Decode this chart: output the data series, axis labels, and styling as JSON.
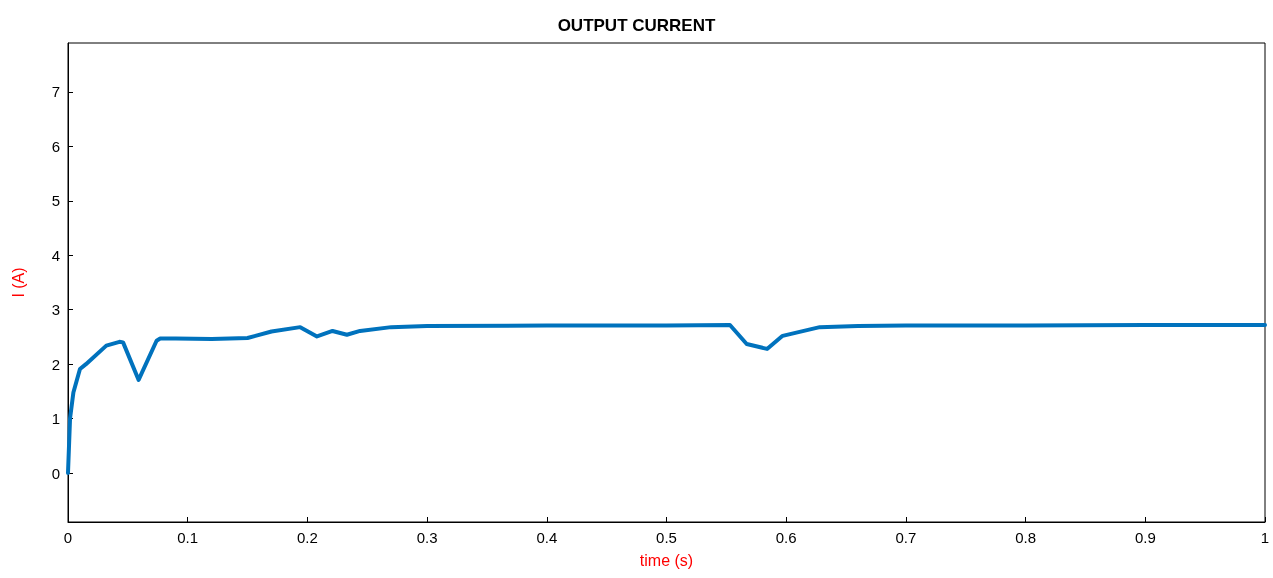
{
  "chart_data": {
    "type": "line",
    "title": "OUTPUT CURRENT",
    "xlabel": "time (s)",
    "ylabel": "I (A)",
    "x": [
      0,
      0.0017,
      0.0045,
      0.01,
      0.015,
      0.032,
      0.043,
      0.046,
      0.059,
      0.074,
      0.077,
      0.09,
      0.12,
      0.15,
      0.17,
      0.194,
      0.208,
      0.221,
      0.233,
      0.244,
      0.27,
      0.3,
      0.4,
      0.5,
      0.553,
      0.567,
      0.584,
      0.597,
      0.628,
      0.66,
      0.7,
      0.8,
      0.9,
      1
    ],
    "series": [
      {
        "color": "#0072bd",
        "values": [
          0,
          1.0,
          1.48,
          1.91,
          2.0,
          2.34,
          2.41,
          2.4,
          1.71,
          2.43,
          2.47,
          2.47,
          2.46,
          2.48,
          2.6,
          2.68,
          2.51,
          2.61,
          2.54,
          2.61,
          2.68,
          2.7,
          2.71,
          2.71,
          2.72,
          2.37,
          2.28,
          2.52,
          2.68,
          2.7,
          2.71,
          2.71,
          2.72,
          2.72
        ]
      }
    ],
    "xlim": [
      0,
      1
    ],
    "xticks": [
      0,
      0.1,
      0.2,
      0.3,
      0.4,
      0.5,
      0.6,
      0.7,
      0.8,
      0.9,
      1
    ],
    "ylim": [
      -0.9,
      7.9
    ],
    "yticks": [
      0,
      1,
      2,
      3,
      4,
      5,
      6,
      7
    ],
    "grid": false,
    "marker": "none",
    "line_style": "solid"
  }
}
